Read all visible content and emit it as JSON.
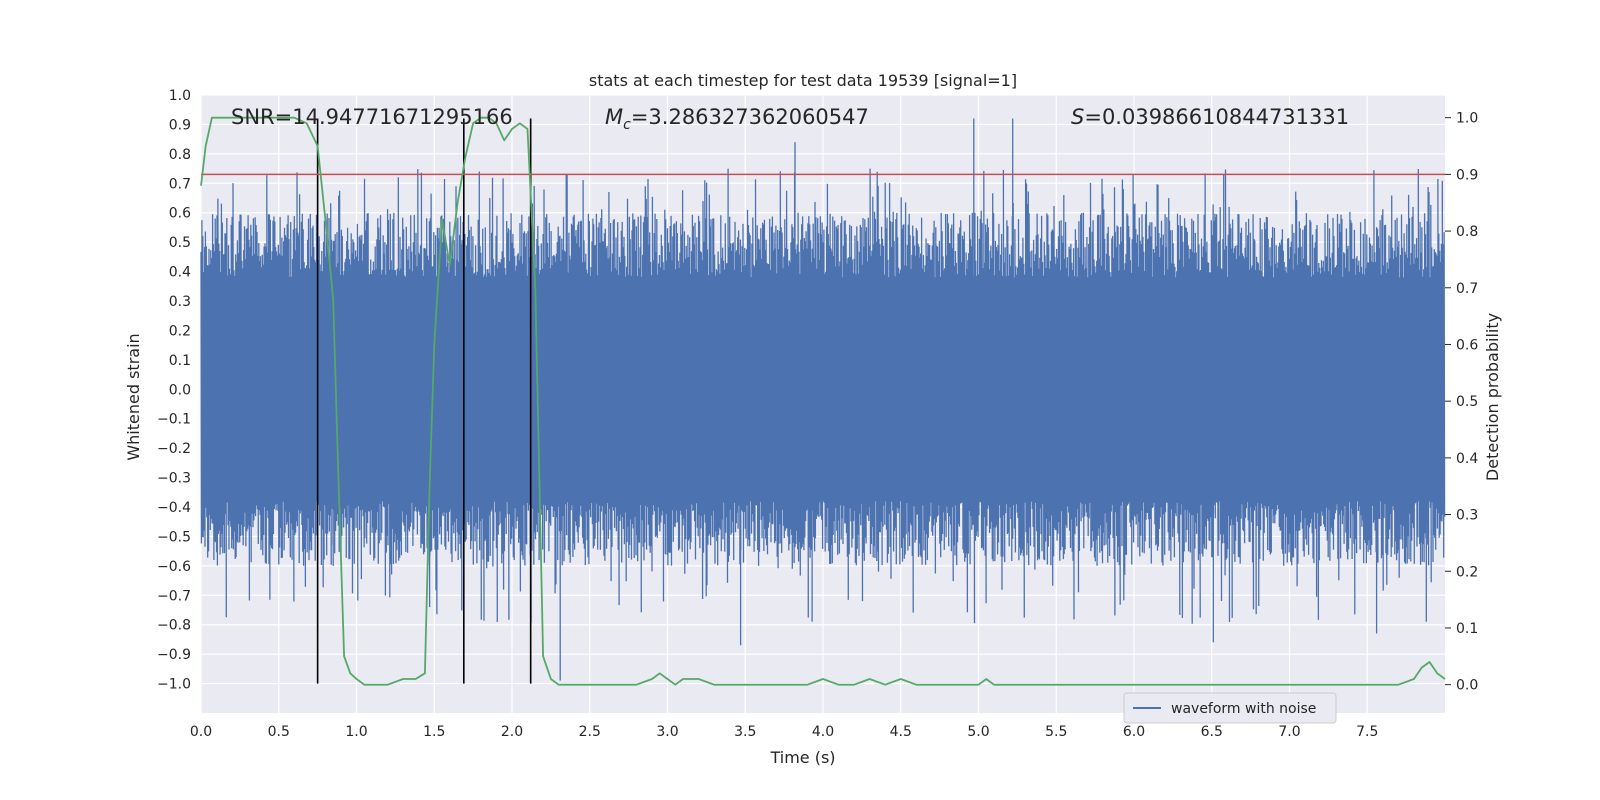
{
  "chart_data": {
    "type": "line",
    "title": "stats at each timestep for test data 19539 [signal=1]",
    "xlabel": "Time (s)",
    "ylabel": "Whitened strain",
    "y2label": "Detection probability",
    "xlim": [
      0.0,
      8.0
    ],
    "ylim": [
      -1.1,
      1.0
    ],
    "y2lim": [
      -0.05,
      1.04
    ],
    "xticks": [
      "0.0",
      "0.5",
      "1.0",
      "1.5",
      "2.0",
      "2.5",
      "3.0",
      "3.5",
      "4.0",
      "4.5",
      "5.0",
      "5.5",
      "6.0",
      "6.5",
      "7.0",
      "7.5"
    ],
    "yticks": [
      "1.0",
      "0.9",
      "0.8",
      "0.7",
      "0.6",
      "0.5",
      "0.4",
      "0.3",
      "0.2",
      "0.1",
      "0.0",
      "−0.1",
      "−0.2",
      "−0.3",
      "−0.4",
      "−0.5",
      "−0.6",
      "−0.7",
      "−0.8",
      "−0.9",
      "−1.0"
    ],
    "y2ticks": [
      "1.0",
      "0.9",
      "0.8",
      "0.7",
      "0.6",
      "0.5",
      "0.4",
      "0.3",
      "0.2",
      "0.1",
      "0.0"
    ],
    "annotations": {
      "snr": "SNR=14.94771671295166",
      "mc_symbol": "M",
      "mc_sub": "c",
      "mc_value": "=3.286327362060547",
      "s_symbol": "S",
      "s_value": "=0.03986610844731331"
    },
    "legend": {
      "label": "waveform with noise",
      "placement": "lower-right"
    },
    "series": [
      {
        "name": "waveform with noise",
        "color": "#4c72b0",
        "axis": "left",
        "kind": "noise",
        "n_points": 1400,
        "core_amplitude": 0.38,
        "peak_max": 0.92,
        "trough_min": -0.99
      },
      {
        "name": "detection probability",
        "color": "#55a868",
        "axis": "right",
        "x": [
          0.0,
          0.03,
          0.07,
          0.12,
          0.2,
          0.3,
          0.4,
          0.5,
          0.6,
          0.68,
          0.75,
          0.8,
          0.85,
          0.88,
          0.92,
          0.96,
          1.0,
          1.05,
          1.1,
          1.2,
          1.3,
          1.38,
          1.44,
          1.47,
          1.5,
          1.55,
          1.6,
          1.65,
          1.7,
          1.75,
          1.8,
          1.85,
          1.9,
          1.95,
          2.0,
          2.05,
          2.1,
          2.15,
          2.2,
          2.25,
          2.3,
          2.4,
          2.5,
          2.6,
          2.7,
          2.8,
          2.9,
          2.95,
          3.0,
          3.05,
          3.1,
          3.2,
          3.3,
          3.4,
          3.5,
          3.6,
          3.7,
          3.8,
          3.9,
          4.0,
          4.1,
          4.2,
          4.3,
          4.4,
          4.5,
          4.6,
          4.7,
          4.8,
          4.9,
          5.0,
          5.05,
          5.1,
          5.2,
          5.3,
          5.4,
          5.5,
          5.6,
          5.7,
          5.8,
          5.9,
          6.0,
          6.1,
          6.2,
          6.3,
          6.4,
          6.5,
          6.6,
          6.7,
          6.8,
          6.9,
          7.0,
          7.1,
          7.2,
          7.3,
          7.4,
          7.5,
          7.6,
          7.7,
          7.8,
          7.85,
          7.9,
          7.95,
          8.0
        ],
        "values": [
          0.88,
          0.95,
          1.0,
          1.0,
          1.0,
          1.0,
          1.0,
          1.0,
          1.0,
          0.99,
          0.95,
          0.82,
          0.68,
          0.4,
          0.05,
          0.02,
          0.01,
          0.0,
          0.0,
          0.0,
          0.01,
          0.01,
          0.02,
          0.35,
          0.6,
          0.82,
          0.74,
          0.85,
          0.93,
          0.99,
          1.0,
          1.0,
          0.99,
          0.96,
          0.98,
          0.99,
          0.98,
          0.7,
          0.05,
          0.01,
          0.0,
          0.0,
          0.0,
          0.0,
          0.0,
          0.0,
          0.01,
          0.02,
          0.01,
          0.0,
          0.01,
          0.01,
          0.0,
          0.0,
          0.0,
          0.0,
          0.0,
          0.0,
          0.0,
          0.01,
          0.0,
          0.0,
          0.01,
          0.0,
          0.01,
          0.0,
          0.0,
          0.0,
          0.0,
          0.0,
          0.01,
          0.0,
          0.0,
          0.0,
          0.0,
          0.0,
          0.0,
          0.0,
          0.0,
          0.0,
          0.0,
          0.0,
          0.0,
          0.0,
          0.0,
          0.0,
          0.0,
          0.0,
          0.0,
          0.0,
          0.0,
          0.0,
          0.0,
          0.0,
          0.0,
          0.0,
          0.0,
          0.0,
          0.01,
          0.03,
          0.04,
          0.02,
          0.01
        ]
      }
    ],
    "threshold": {
      "value": 0.9,
      "axis": "right",
      "color": "#c44e52"
    },
    "vlines": [
      0.75,
      1.69,
      2.12
    ],
    "vline_range": [
      -1.0,
      0.92
    ],
    "colors": {
      "axes_bg": "#eaeaf2",
      "grid": "#ffffff",
      "vline": "#000000",
      "text": "#262626"
    }
  }
}
